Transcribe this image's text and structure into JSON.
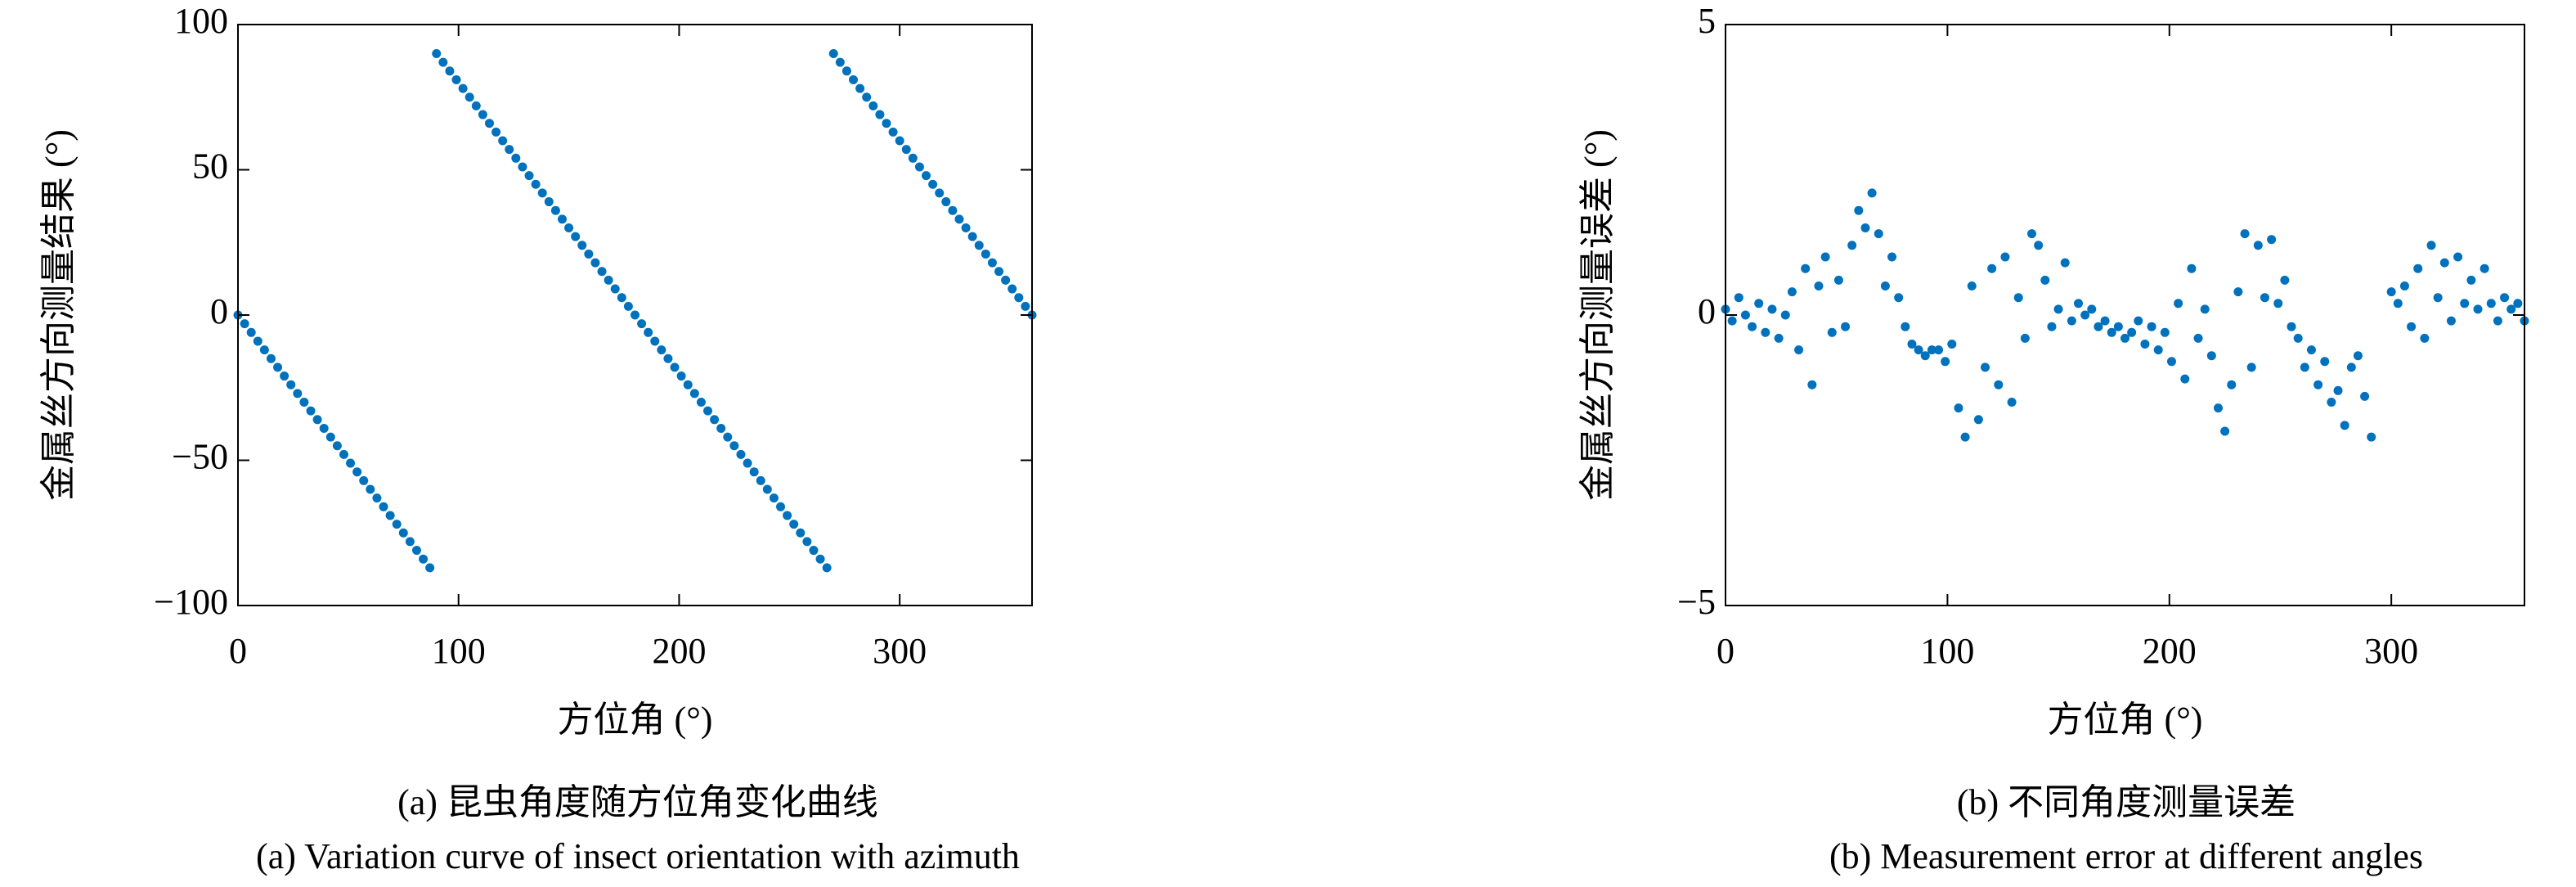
{
  "chart_data": [
    {
      "type": "scatter",
      "color": "#0072bd",
      "xlabel": "方位角 (°)",
      "ylabel": "金属丝方向测量结果 (°)",
      "caption": [
        "(a) 昆虫角度随方位角变化曲线",
        "(a) Variation curve of insect orientation with azimuth"
      ],
      "xlim": [
        0,
        360
      ],
      "ylim": [
        -100,
        100
      ],
      "xticks": [
        0,
        100,
        200,
        300
      ],
      "yticks": [
        {
          "value": -100,
          "label": "−100"
        },
        {
          "value": -50,
          "label": "−50"
        },
        0,
        50,
        100
      ],
      "x": [
        0,
        3,
        6,
        9,
        12,
        15,
        18,
        21,
        24,
        27,
        30,
        33,
        36,
        39,
        42,
        45,
        48,
        51,
        54,
        57,
        60,
        63,
        66,
        69,
        72,
        75,
        78,
        81,
        84,
        87,
        90,
        93,
        96,
        99,
        102,
        105,
        108,
        111,
        114,
        117,
        120,
        123,
        126,
        129,
        132,
        135,
        138,
        141,
        144,
        147,
        150,
        153,
        156,
        159,
        162,
        165,
        168,
        171,
        174,
        177,
        180,
        183,
        186,
        189,
        192,
        195,
        198,
        201,
        204,
        207,
        210,
        213,
        216,
        219,
        222,
        225,
        228,
        231,
        234,
        237,
        240,
        243,
        246,
        249,
        252,
        255,
        258,
        261,
        264,
        267,
        270,
        273,
        276,
        279,
        282,
        285,
        288,
        291,
        294,
        297,
        300,
        303,
        306,
        309,
        312,
        315,
        318,
        321,
        324,
        327,
        330,
        333,
        336,
        339,
        342,
        345,
        348,
        351,
        354,
        357,
        360
      ],
      "values": [
        0,
        -3,
        -6,
        -9,
        -12,
        -15,
        -18,
        -21,
        -24,
        -27,
        -30,
        -33,
        -36,
        -39,
        -42,
        -45,
        -48,
        -51,
        -54,
        -57,
        -60,
        -63,
        -66,
        -69,
        -72,
        -75,
        -78,
        -81,
        -84,
        -87,
        90,
        87,
        84,
        81,
        78,
        75,
        72,
        69,
        66,
        63,
        60,
        57,
        54,
        51,
        48,
        45,
        42,
        39,
        36,
        33,
        30,
        27,
        24,
        21,
        18,
        15,
        12,
        9,
        6,
        3,
        0,
        -3,
        -6,
        -9,
        -12,
        -15,
        -18,
        -21,
        -24,
        -27,
        -30,
        -33,
        -36,
        -39,
        -42,
        -45,
        -48,
        -51,
        -54,
        -57,
        -60,
        -63,
        -66,
        -69,
        -72,
        -75,
        -78,
        -81,
        -84,
        -87,
        90,
        87,
        84,
        81,
        78,
        75,
        72,
        69,
        66,
        63,
        60,
        57,
        54,
        51,
        48,
        45,
        42,
        39,
        36,
        33,
        30,
        27,
        24,
        21,
        18,
        15,
        12,
        9,
        6,
        3,
        0
      ]
    },
    {
      "type": "scatter",
      "color": "#0072bd",
      "xlabel": "方位角 (°)",
      "ylabel": "金属丝方向测量误差 (°)",
      "caption": [
        "(b) 不同角度测量误差",
        "(b) Measurement error at different angles"
      ],
      "xlim": [
        0,
        360
      ],
      "ylim": [
        -5,
        5
      ],
      "xticks": [
        0,
        100,
        200,
        300
      ],
      "yticks": [
        {
          "value": -5,
          "label": "−5"
        },
        0,
        5
      ],
      "x": [
        0,
        3,
        6,
        9,
        12,
        15,
        18,
        21,
        24,
        27,
        30,
        33,
        36,
        39,
        42,
        45,
        48,
        51,
        54,
        57,
        60,
        63,
        66,
        69,
        72,
        75,
        78,
        81,
        84,
        87,
        90,
        93,
        96,
        99,
        102,
        105,
        108,
        111,
        114,
        117,
        120,
        123,
        126,
        129,
        132,
        135,
        138,
        141,
        144,
        147,
        150,
        153,
        156,
        159,
        162,
        165,
        168,
        171,
        174,
        177,
        180,
        183,
        186,
        189,
        192,
        195,
        198,
        201,
        204,
        207,
        210,
        213,
        216,
        219,
        222,
        225,
        228,
        231,
        234,
        237,
        240,
        243,
        246,
        249,
        252,
        255,
        258,
        261,
        264,
        267,
        270,
        273,
        276,
        279,
        282,
        285,
        288,
        291,
        300,
        303,
        306,
        309,
        312,
        315,
        318,
        321,
        324,
        327,
        330,
        333,
        336,
        339,
        342,
        345,
        348,
        351,
        354,
        357,
        360
      ],
      "values": [
        0.1,
        -0.1,
        0.3,
        0,
        -0.2,
        0.2,
        -0.3,
        0.1,
        -0.4,
        0,
        0.4,
        -0.6,
        0.8,
        -1.2,
        0.5,
        1,
        -0.3,
        0.6,
        -0.2,
        1.2,
        1.8,
        1.5,
        2.1,
        1.4,
        0.5,
        1,
        0.3,
        -0.2,
        -0.5,
        -0.6,
        -0.7,
        -0.6,
        -0.6,
        -0.8,
        -0.5,
        -1.6,
        -2.1,
        0.5,
        -1.8,
        -0.9,
        0.8,
        -1.2,
        1,
        -1.5,
        0.3,
        -0.4,
        1.4,
        1.2,
        0.6,
        -0.2,
        0.1,
        0.9,
        -0.1,
        0.2,
        0,
        0.1,
        -0.2,
        -0.1,
        -0.3,
        -0.2,
        -0.4,
        -0.3,
        -0.1,
        -0.5,
        -0.2,
        -0.6,
        -0.3,
        -0.8,
        0.2,
        -1.1,
        0.8,
        -0.4,
        0.1,
        -0.7,
        -1.6,
        -2,
        -1.2,
        0.4,
        1.4,
        -0.9,
        1.2,
        0.3,
        1.3,
        0.2,
        0.6,
        -0.2,
        -0.4,
        -0.9,
        -0.6,
        -1.2,
        -0.8,
        -1.5,
        -1.3,
        -1.9,
        -0.9,
        -0.7,
        -1.4,
        -2.1,
        0.4,
        0.2,
        0.5,
        -0.2,
        0.8,
        -0.4,
        1.2,
        0.3,
        0.9,
        -0.1,
        1,
        0.2,
        0.6,
        0.1,
        0.8,
        0.2,
        -0.1,
        0.3,
        0.1,
        0.2,
        -0.1
      ]
    }
  ]
}
